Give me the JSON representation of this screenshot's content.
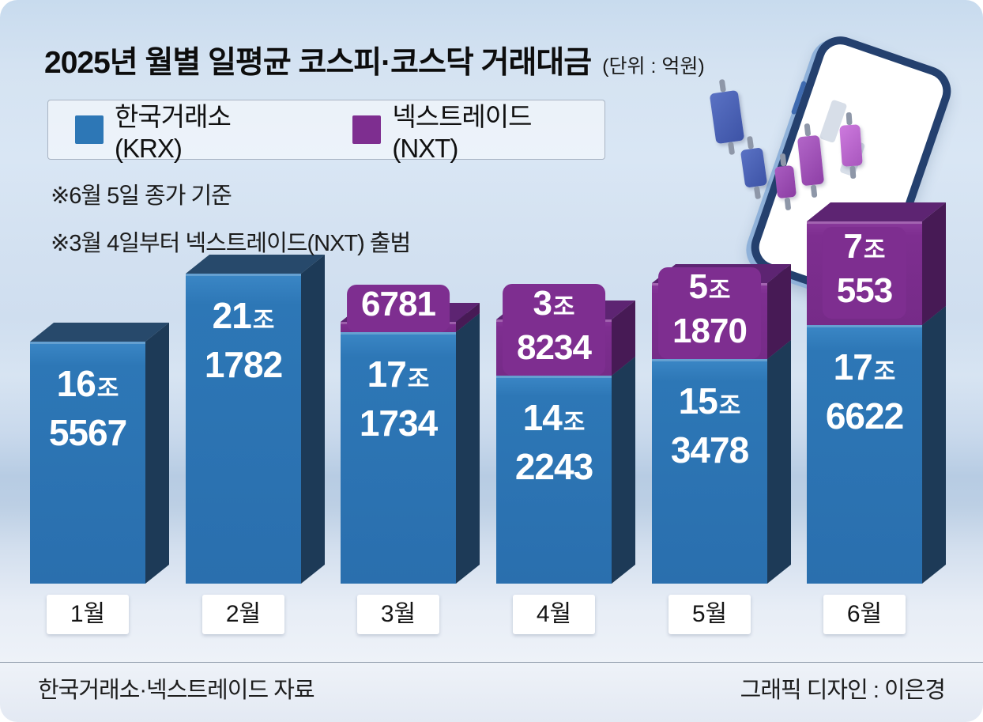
{
  "title": {
    "text": "2025년 월별 일평균 코스피·코스닥 거래대금",
    "unit_note": "(단위 : 억원)"
  },
  "legend": [
    {
      "label": "한국거래소(KRX)",
      "color": "#2d77b6"
    },
    {
      "label": "넥스트레이드(NXT)",
      "color": "#7e2e90"
    }
  ],
  "notes": [
    "※6월 5일 종가 기준",
    "※3월 4일부터 넥스트레이드(NXT) 출범"
  ],
  "footer": {
    "source": "한국거래소·넥스트레이드 자료",
    "credit": "그래픽 디자인 : 이은경"
  },
  "chart_data": {
    "type": "bar",
    "stacked": true,
    "unit": "억원",
    "jo_suffix": "조",
    "title": "2025년 월별 일평균 코스피·코스닥 거래대금",
    "categories": [
      "1월",
      "2월",
      "3월",
      "4월",
      "5월",
      "6월"
    ],
    "series": [
      {
        "name": "한국거래소(KRX)",
        "color": "#2d77b6",
        "values": [
          165567,
          211782,
          171734,
          142243,
          153478,
          176622
        ]
      },
      {
        "name": "넥스트레이드(NXT)",
        "color": "#7e2e90",
        "values": [
          0,
          0,
          6781,
          38234,
          51870,
          70553
        ]
      }
    ],
    "bar_labels": [
      {
        "krx": {
          "jo": "16",
          "rest": "5567"
        },
        "nxt": null
      },
      {
        "krx": {
          "jo": "21",
          "rest": "1782"
        },
        "nxt": null
      },
      {
        "krx": {
          "jo": "17",
          "rest": "1734"
        },
        "nxt": {
          "jo": null,
          "rest": "6781"
        }
      },
      {
        "krx": {
          "jo": "14",
          "rest": "2243"
        },
        "nxt": {
          "jo": "3",
          "rest": "8234"
        }
      },
      {
        "krx": {
          "jo": "15",
          "rest": "3478"
        },
        "nxt": {
          "jo": "5",
          "rest": "1870"
        }
      },
      {
        "krx": {
          "jo": "17",
          "rest": "6622"
        },
        "nxt": {
          "jo": "7",
          "rest": "553"
        }
      }
    ],
    "legend_position": "top-left",
    "grid": false
  }
}
